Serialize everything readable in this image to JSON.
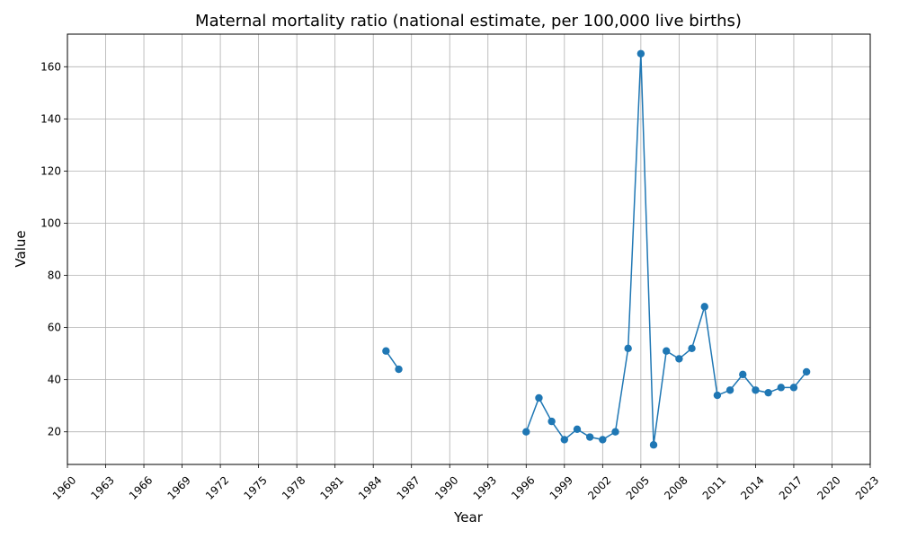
{
  "chart_data": {
    "type": "line",
    "title": "Maternal mortality ratio (national estimate, per 100,000 live births)",
    "xlabel": "Year",
    "ylabel": "Value",
    "xlim": [
      1960,
      2023
    ],
    "ylim": [
      7.5,
      172.5
    ],
    "x_ticks": [
      "1960",
      "1963",
      "1966",
      "1969",
      "1972",
      "1975",
      "1978",
      "1981",
      "1984",
      "1987",
      "1990",
      "1993",
      "1996",
      "1999",
      "2002",
      "2005",
      "2008",
      "2011",
      "2014",
      "2017",
      "2020",
      "2023"
    ],
    "y_ticks": [
      "20",
      "40",
      "60",
      "80",
      "100",
      "120",
      "140",
      "160"
    ],
    "grid": true,
    "colors": {
      "series": "#1f77b4",
      "grid": "#b0b0b0"
    },
    "series": [
      {
        "x": [
          1985,
          1986,
          1996,
          1997,
          1998,
          1999,
          2000,
          2001,
          2002,
          2003,
          2004,
          2005,
          2006,
          2007,
          2008,
          2009,
          2010,
          2011,
          2012,
          2013,
          2014,
          2015,
          2016,
          2017,
          2018
        ],
        "y": [
          51,
          44,
          20,
          33,
          24,
          17,
          21,
          18,
          17,
          20,
          52,
          165,
          15,
          51,
          48,
          52,
          68,
          34,
          36,
          42,
          36,
          35,
          37,
          37,
          43
        ],
        "gaps_after": [
          1986
        ]
      }
    ]
  }
}
